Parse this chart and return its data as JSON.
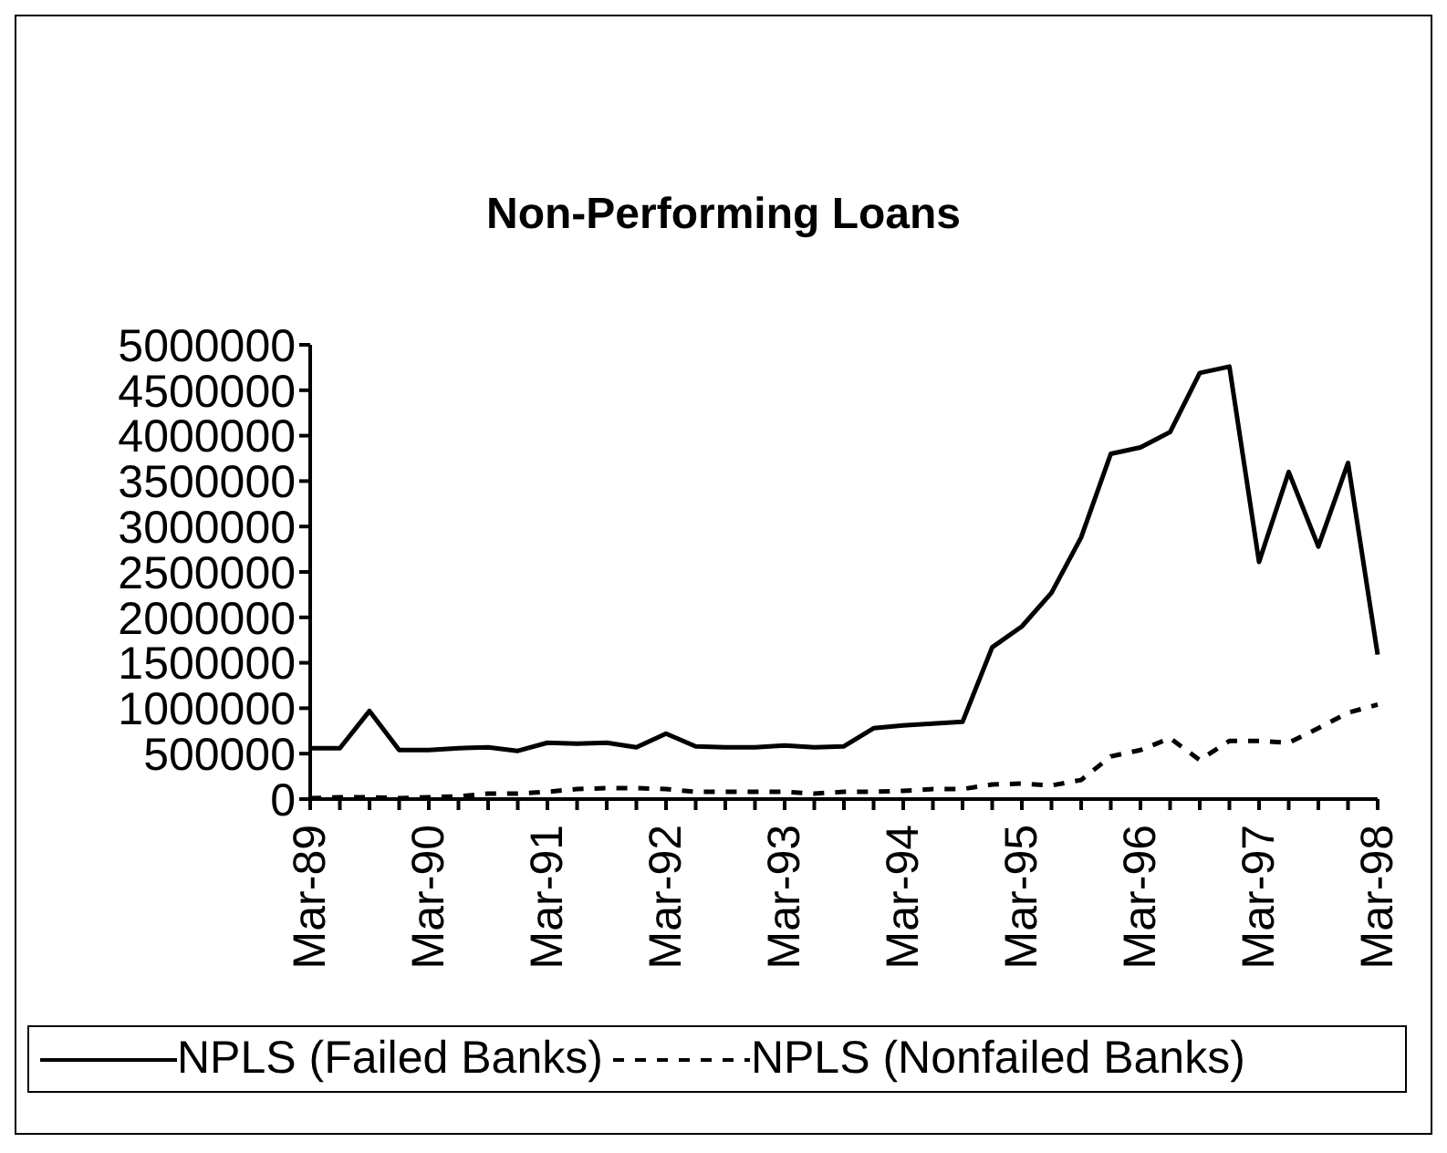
{
  "chart_data": {
    "type": "line",
    "title": "Non-Performing Loans",
    "categories": [
      "Mar-89",
      null,
      null,
      null,
      "Mar-90",
      null,
      null,
      null,
      "Mar-91",
      null,
      null,
      null,
      "Mar-92",
      null,
      null,
      null,
      "Mar-93",
      null,
      null,
      null,
      "Mar-94",
      null,
      null,
      null,
      "Mar-95",
      null,
      null,
      null,
      "Mar-96",
      null,
      null,
      null,
      "Mar-97",
      null,
      null,
      null,
      "Mar-98"
    ],
    "series": [
      {
        "name": "NPLS (Failed Banks)",
        "color": "#000000",
        "line_style": "solid",
        "values": [
          560000,
          560000,
          970000,
          540000,
          540000,
          560000,
          570000,
          530000,
          620000,
          610000,
          620000,
          570000,
          720000,
          580000,
          570000,
          570000,
          590000,
          570000,
          580000,
          780000,
          810000,
          830000,
          850000,
          1670000,
          1900000,
          2270000,
          2880000,
          3800000,
          3870000,
          4040000,
          4690000,
          4760000,
          2610000,
          3600000,
          2780000,
          3700000,
          1590000
        ]
      },
      {
        "name": "NPLS (Nonfailed Banks)",
        "color": "#000000",
        "line_style": "dashed",
        "values": [
          10000,
          20000,
          20000,
          10000,
          20000,
          30000,
          60000,
          60000,
          80000,
          110000,
          120000,
          120000,
          110000,
          80000,
          80000,
          80000,
          80000,
          60000,
          80000,
          80000,
          90000,
          110000,
          110000,
          160000,
          170000,
          150000,
          210000,
          470000,
          540000,
          670000,
          430000,
          640000,
          640000,
          620000,
          780000,
          950000,
          1040000
        ]
      }
    ],
    "ylim": [
      0,
      5000000
    ],
    "yticks": [
      0,
      500000,
      1000000,
      1500000,
      2000000,
      2500000,
      3000000,
      3500000,
      4000000,
      4500000,
      5000000
    ],
    "legend": "bottom",
    "marker": "none"
  }
}
